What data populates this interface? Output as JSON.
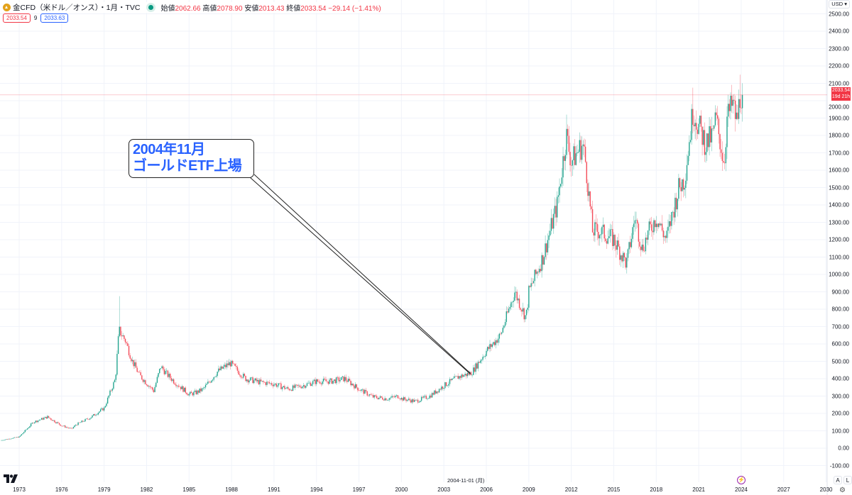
{
  "header": {
    "symbol": "金CFD（米ドル／オンス）・1月・TVC",
    "open_label": "始値",
    "open": "2062.66",
    "high_label": "高値",
    "high": "2078.90",
    "low_label": "安値",
    "low": "2013.43",
    "close_label": "終値",
    "close": "2033.54",
    "change": "−29.14 (−1.41%)"
  },
  "price_row": {
    "sell": "2033.54",
    "spread": "9",
    "buy": "2033.63"
  },
  "currency": "USD",
  "current_price": {
    "price": "2033.54",
    "countdown": "19d 21h"
  },
  "annotation": {
    "line1": "2004年11月",
    "line2": "ゴールドETF上場"
  },
  "crosshair_date": "2004-11-01 (月)",
  "buttons": {
    "auto": "A",
    "log": "L"
  },
  "logo": "17",
  "colors": {
    "up": "#089981",
    "down": "#F23645",
    "annotation": "#2962FF"
  },
  "chart_data": {
    "type": "candlestick",
    "title": "金CFD（米ドル／オンス）・1月・TVC",
    "interval": "monthly",
    "ylim": [
      -150,
      2550
    ],
    "xlim": [
      1971.7,
      2032.2
    ],
    "y_ticks": [
      "-100.00",
      "0.00",
      "100.00",
      "200.00",
      "300.00",
      "400.00",
      "500.00",
      "600.00",
      "700.00",
      "800.00",
      "900.00",
      "1000.00",
      "1100.00",
      "1200.00",
      "1300.00",
      "1400.00",
      "1500.00",
      "1600.00",
      "1700.00",
      "1800.00",
      "1900.00",
      "2000.00",
      "2100.00",
      "2200.00",
      "2300.00",
      "2400.00",
      "2500.00"
    ],
    "x_ticks": [
      "1973",
      "1976",
      "1979",
      "1982",
      "1985",
      "1988",
      "1991",
      "1994",
      "1997",
      "2000",
      "2003",
      "2006",
      "2009",
      "2012",
      "2015",
      "2018",
      "2021",
      "2024",
      "2027",
      "2030"
    ],
    "price_path": [
      [
        1971.7,
        45
      ],
      [
        1973,
        65
      ],
      [
        1974,
        150
      ],
      [
        1975,
        180
      ],
      [
        1976,
        130
      ],
      [
        1976.7,
        110
      ],
      [
        1977,
        135
      ],
      [
        1978,
        175
      ],
      [
        1979,
        230
      ],
      [
        1979.8,
        400
      ],
      [
        1980.05,
        680
      ],
      [
        1980.5,
        620
      ],
      [
        1981,
        500
      ],
      [
        1981.5,
        420
      ],
      [
        1982.5,
        330
      ],
      [
        1983,
        470
      ],
      [
        1983.5,
        420
      ],
      [
        1984,
        380
      ],
      [
        1985,
        310
      ],
      [
        1985.5,
        320
      ],
      [
        1986,
        340
      ],
      [
        1987,
        440
      ],
      [
        1987.9,
        490
      ],
      [
        1988.5,
        440
      ],
      [
        1989,
        400
      ],
      [
        1990,
        380
      ],
      [
        1991,
        370
      ],
      [
        1992,
        340
      ],
      [
        1993,
        360
      ],
      [
        1994,
        385
      ],
      [
        1995,
        385
      ],
      [
        1996,
        400
      ],
      [
        1997,
        340
      ],
      [
        1998,
        295
      ],
      [
        1999,
        285
      ],
      [
        1999.8,
        300
      ],
      [
        2000,
        285
      ],
      [
        2001,
        270
      ],
      [
        2002,
        300
      ],
      [
        2003,
        360
      ],
      [
        2004,
        410
      ],
      [
        2004.83,
        430
      ],
      [
        2005,
        440
      ],
      [
        2006,
        560
      ],
      [
        2007,
        650
      ],
      [
        2008,
        900
      ],
      [
        2008.8,
        750
      ],
      [
        2009,
        900
      ],
      [
        2010,
        1100
      ],
      [
        2011,
        1400
      ],
      [
        2011.65,
        1800
      ],
      [
        2012,
        1650
      ],
      [
        2012.8,
        1750
      ],
      [
        2013,
        1650
      ],
      [
        2013.5,
        1250
      ],
      [
        2014,
        1250
      ],
      [
        2015,
        1200
      ],
      [
        2015.9,
        1060
      ],
      [
        2016.5,
        1330
      ],
      [
        2017,
        1150
      ],
      [
        2017.5,
        1250
      ],
      [
        2018,
        1330
      ],
      [
        2018.7,
        1200
      ],
      [
        2019,
        1300
      ],
      [
        2019.6,
        1500
      ],
      [
        2020,
        1550
      ],
      [
        2020.6,
        1950
      ],
      [
        2021,
        1850
      ],
      [
        2021.5,
        1750
      ],
      [
        2022,
        1800
      ],
      [
        2022.2,
        1900
      ],
      [
        2022.8,
        1640
      ],
      [
        2023,
        1900
      ],
      [
        2023.4,
        1980
      ],
      [
        2023.7,
        1870
      ],
      [
        2023.95,
        2050
      ],
      [
        2024.1,
        2033.54
      ]
    ],
    "notable_highs": [
      [
        1980.05,
        875
      ],
      [
        2011.7,
        1920
      ],
      [
        2020.6,
        2075
      ],
      [
        2023.95,
        2150
      ]
    ],
    "annotation_point": {
      "date": "2004-11",
      "price": 430
    }
  }
}
